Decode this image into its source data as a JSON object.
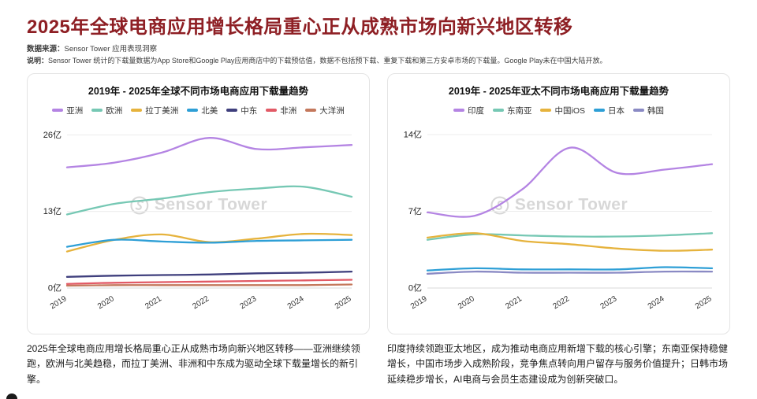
{
  "header": {
    "title": "2025年全球电商应用增长格局重心正从成熟市场向新兴地区转移",
    "source_label": "数据来源：",
    "source_text": "Sensor Tower 应用表现洞察",
    "method_label": "说明：",
    "method_text": "Sensor Tower 统计的下载量数据为App Store和Google Play应用商店中的下载预估值，数据不包括预下载、重复下载和第三方安卓市场的下载量。Google Play未在中国大陆开放。"
  },
  "watermark": {
    "text": "Sensor Tower",
    "color": "#d7d7d7"
  },
  "summaries": [
    "2025年全球电商应用增长格局重心正从成熟市场向新兴地区转移——亚洲继续领跑，欧洲与北美趋稳，而拉丁美洲、非洲和中东成为驱动全球下载量增长的新引擎。",
    "印度持续领跑亚太地区，成为推动电商应用新增下载的核心引擎；东南亚保持稳健增长，中国市场步入成熟阶段，竞争焦点转向用户留存与服务价值提升；日韩市场延续稳步增长，AI电商与会员生态建设成为创新突破口。"
  ],
  "colors": {
    "title": "#8e1f24",
    "grid": "#ececec",
    "axis_text": "#333333"
  },
  "chart_data": [
    {
      "type": "line",
      "title": "2019年 - 2025年全球不同市场电商应用下载量趋势",
      "legend_position": "top",
      "grid": true,
      "x": [
        2019,
        2020,
        2021,
        2022,
        2023,
        2024,
        2025
      ],
      "yticks": [
        0,
        13,
        26
      ],
      "ytick_labels": [
        "0亿",
        "13亿",
        "26亿"
      ],
      "ylim": [
        0,
        27
      ],
      "unit": "亿",
      "series": [
        {
          "name": "亚洲",
          "color": "#b484e3",
          "values": [
            20.5,
            21.3,
            23.0,
            25.5,
            23.6,
            23.9,
            24.3
          ]
        },
        {
          "name": "欧洲",
          "color": "#76c8b4",
          "values": [
            12.5,
            14.3,
            15.2,
            16.3,
            16.9,
            17.2,
            15.5
          ]
        },
        {
          "name": "拉丁美洲",
          "color": "#e6b33d",
          "values": [
            6.2,
            8.2,
            9.1,
            7.8,
            8.4,
            9.2,
            9.0
          ]
        },
        {
          "name": "北美",
          "color": "#2e9fd6",
          "values": [
            7.0,
            8.2,
            7.9,
            7.7,
            8.0,
            8.1,
            8.2
          ]
        },
        {
          "name": "中东",
          "color": "#3f3f7d",
          "values": [
            1.9,
            2.1,
            2.2,
            2.3,
            2.5,
            2.6,
            2.8
          ]
        },
        {
          "name": "非洲",
          "color": "#e25a66",
          "values": [
            0.7,
            0.9,
            1.0,
            1.1,
            1.2,
            1.3,
            1.4
          ]
        },
        {
          "name": "大洋洲",
          "color": "#c4785c",
          "values": [
            0.4,
            0.5,
            0.5,
            0.5,
            0.5,
            0.5,
            0.6
          ]
        }
      ]
    },
    {
      "type": "line",
      "title": "2019年 - 2025年亚太不同市场电商应用下载量趋势",
      "legend_position": "top",
      "grid": true,
      "x": [
        2019,
        2020,
        2021,
        2022,
        2023,
        2024,
        2025
      ],
      "yticks": [
        0,
        7,
        14
      ],
      "ytick_labels": [
        "0亿",
        "7亿",
        "14亿"
      ],
      "ylim": [
        0,
        14.5
      ],
      "unit": "亿",
      "series": [
        {
          "name": "印度",
          "color": "#b484e3",
          "values": [
            6.9,
            6.6,
            9.0,
            12.8,
            10.5,
            10.8,
            11.3
          ]
        },
        {
          "name": "东南亚",
          "color": "#76c8b4",
          "values": [
            4.4,
            4.9,
            4.8,
            4.7,
            4.7,
            4.8,
            5.0
          ]
        },
        {
          "name": "中国iOS",
          "color": "#e6b33d",
          "values": [
            4.6,
            5.0,
            4.3,
            4.0,
            3.6,
            3.4,
            3.5
          ]
        },
        {
          "name": "日本",
          "color": "#2e9fd6",
          "values": [
            1.6,
            1.8,
            1.7,
            1.7,
            1.7,
            1.9,
            1.8
          ]
        },
        {
          "name": "韩国",
          "color": "#8a8ac4",
          "values": [
            1.3,
            1.5,
            1.4,
            1.4,
            1.4,
            1.5,
            1.5
          ]
        }
      ]
    }
  ]
}
